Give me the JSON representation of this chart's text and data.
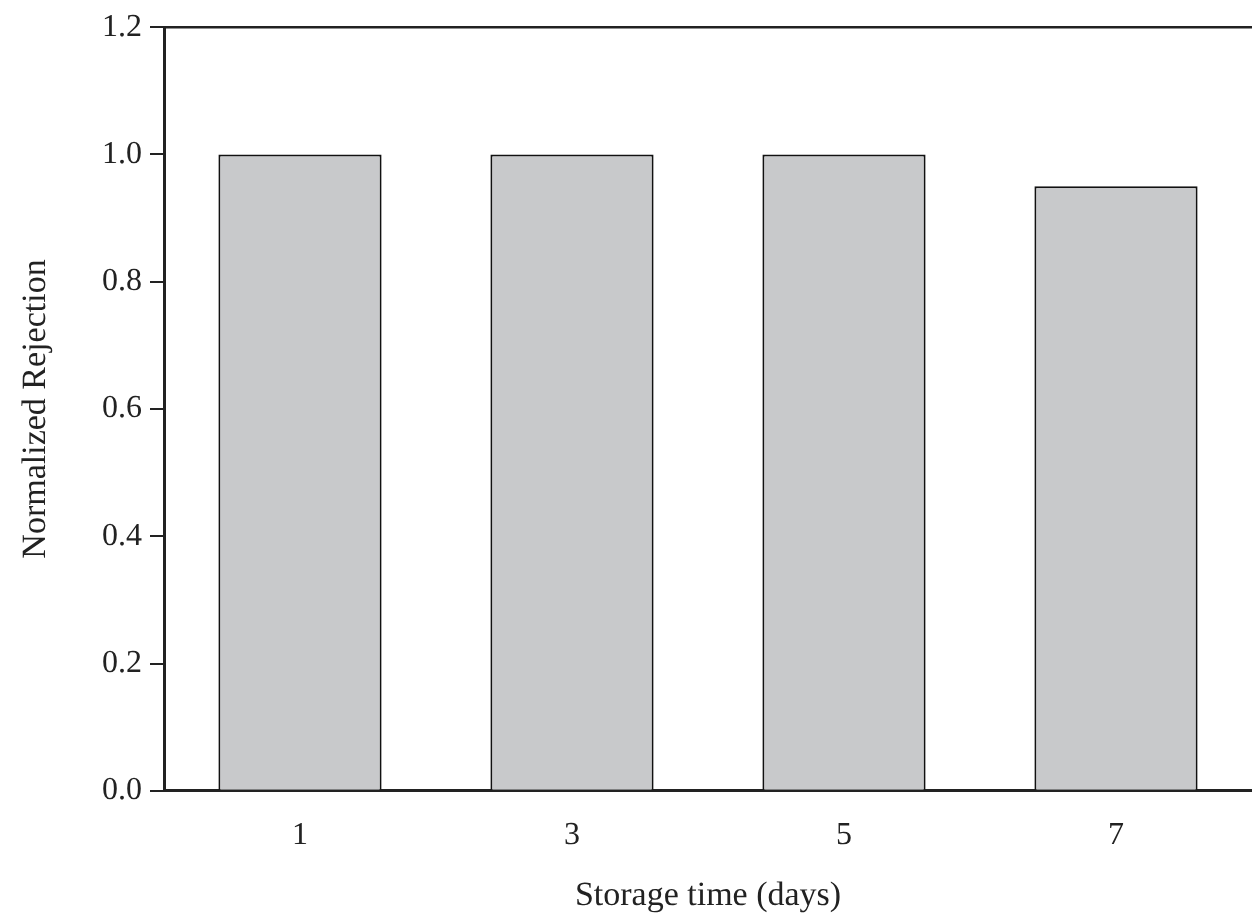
{
  "chart_data": {
    "type": "bar",
    "xlabel": "Storage time (days)",
    "ylabel": "Normalized Rejection",
    "categories": [
      "1",
      "3",
      "5",
      "7"
    ],
    "values": [
      1.0,
      1.0,
      1.0,
      0.95
    ],
    "color": "#c8c9cb",
    "ylim": [
      0,
      1.2
    ],
    "yticks": [
      {
        "value": 0,
        "label": "0.0"
      },
      {
        "value": 0.2,
        "label": "0.2"
      },
      {
        "value": 0.4,
        "label": "0.4"
      },
      {
        "value": 0.6,
        "label": "0.6"
      },
      {
        "value": 0.8,
        "label": "0.8"
      },
      {
        "value": 1,
        "label": "1.0"
      },
      {
        "value": 1.2,
        "label": "1.2"
      }
    ],
    "grid": false,
    "legend": false
  }
}
